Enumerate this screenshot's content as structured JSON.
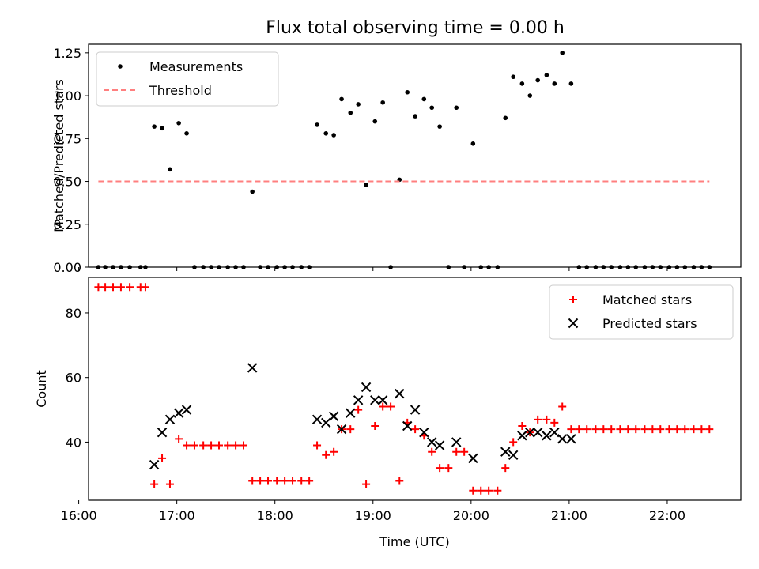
{
  "figure": {
    "title": "Flux total observing time = 0.00 h"
  },
  "chart_data": [
    {
      "type": "scatter",
      "title": "Flux total observing time = 0.00 h",
      "xlabel": "",
      "ylabel": "Matched/Predicted stars",
      "xlim": [
        16.1,
        22.75
      ],
      "ylim": [
        0.0,
        1.3
      ],
      "yticks": [
        0.0,
        0.25,
        0.5,
        0.75,
        1.0,
        1.25
      ],
      "ytick_labels": [
        "0.00",
        "0.25",
        "0.50",
        "0.75",
        "1.00",
        "1.25"
      ],
      "xticks": [
        16,
        17,
        18,
        19,
        20,
        21,
        22
      ],
      "show_xtick_labels": false,
      "legend": {
        "placement": "upper left",
        "entries": [
          "Measurements",
          "Threshold"
        ]
      },
      "series": [
        {
          "name": "Measurements",
          "color": "#000000",
          "marker": "dot",
          "x": [
            16.2,
            16.27,
            16.35,
            16.43,
            16.52,
            16.63,
            16.68,
            16.77,
            16.85,
            16.93,
            17.02,
            17.1,
            17.18,
            17.27,
            17.35,
            17.43,
            17.52,
            17.6,
            17.68,
            17.77,
            17.85,
            17.93,
            18.02,
            18.1,
            18.18,
            18.27,
            18.35,
            18.43,
            18.52,
            18.6,
            18.68,
            18.77,
            18.85,
            18.93,
            19.02,
            19.1,
            19.18,
            19.27,
            19.35,
            19.43,
            19.52,
            19.6,
            19.68,
            19.77,
            19.85,
            19.93,
            20.02,
            20.1,
            20.18,
            20.27,
            20.35,
            20.43,
            20.52,
            20.6,
            20.68,
            20.77,
            20.85,
            20.93,
            21.02,
            21.1,
            21.18,
            21.27,
            21.35,
            21.43,
            21.52,
            21.6,
            21.68,
            21.77,
            21.85,
            21.93,
            22.02,
            22.1,
            22.18,
            22.27,
            22.35,
            22.43
          ],
          "y": [
            0,
            0,
            0,
            0,
            0,
            0,
            0,
            0.82,
            0.81,
            0.57,
            0.84,
            0.78,
            0,
            0,
            0,
            0,
            0,
            0,
            0,
            0.44,
            0,
            0,
            0,
            0,
            0,
            0,
            0,
            0.83,
            0.78,
            0.77,
            0.98,
            0.9,
            0.95,
            0.48,
            0.85,
            0.96,
            0,
            0.51,
            1.02,
            0.88,
            0.98,
            0.93,
            0.82,
            0,
            0.93,
            0,
            0.72,
            0,
            0,
            0,
            0.87,
            1.11,
            1.07,
            1.0,
            1.09,
            1.12,
            1.07,
            1.25,
            1.07,
            0,
            0,
            0,
            0,
            0,
            0,
            0,
            0,
            0,
            0,
            0,
            0,
            0,
            0,
            0,
            0,
            0
          ]
        },
        {
          "name": "Threshold",
          "color": "#ff7f7f",
          "style": "dashed",
          "x": [
            16.2,
            22.43
          ],
          "y": [
            0.5,
            0.5
          ]
        }
      ]
    },
    {
      "type": "scatter",
      "title": "",
      "xlabel": "Time (UTC)",
      "ylabel": "Count",
      "xlim": [
        16.1,
        22.75
      ],
      "ylim": [
        22,
        91
      ],
      "yticks": [
        40,
        60,
        80
      ],
      "ytick_labels": [
        "40",
        "60",
        "80"
      ],
      "xticks": [
        16,
        17,
        18,
        19,
        20,
        21,
        22
      ],
      "xtick_labels": [
        "16:00",
        "17:00",
        "18:00",
        "19:00",
        "20:00",
        "21:00",
        "22:00"
      ],
      "legend": {
        "placement": "upper right",
        "entries": [
          "Matched stars",
          "Predicted stars"
        ]
      },
      "series": [
        {
          "name": "Matched stars",
          "color": "#ff0000",
          "marker": "plus",
          "x": [
            16.2,
            16.27,
            16.35,
            16.43,
            16.52,
            16.63,
            16.68,
            16.77,
            16.85,
            16.93,
            17.02,
            17.1,
            17.18,
            17.27,
            17.35,
            17.43,
            17.52,
            17.6,
            17.68,
            17.77,
            17.85,
            17.93,
            18.02,
            18.1,
            18.18,
            18.27,
            18.35,
            18.43,
            18.52,
            18.6,
            18.68,
            18.77,
            18.85,
            18.93,
            19.02,
            19.1,
            19.18,
            19.27,
            19.35,
            19.43,
            19.52,
            19.6,
            19.68,
            19.77,
            19.85,
            19.93,
            20.02,
            20.1,
            20.18,
            20.27,
            20.35,
            20.43,
            20.52,
            20.6,
            20.68,
            20.77,
            20.85,
            20.93,
            21.02,
            21.1,
            21.18,
            21.27,
            21.35,
            21.43,
            21.52,
            21.6,
            21.68,
            21.77,
            21.85,
            21.93,
            22.02,
            22.1,
            22.18,
            22.27,
            22.35,
            22.43
          ],
          "y": [
            88,
            88,
            88,
            88,
            88,
            88,
            88,
            27,
            35,
            27,
            41,
            39,
            39,
            39,
            39,
            39,
            39,
            39,
            39,
            28,
            28,
            28,
            28,
            28,
            28,
            28,
            28,
            39,
            36,
            37,
            44,
            44,
            50,
            27,
            45,
            51,
            51,
            28,
            46,
            44,
            42,
            37,
            32,
            32,
            37,
            37,
            25,
            25,
            25,
            25,
            32,
            40,
            45,
            43,
            47,
            47,
            46,
            51,
            44,
            44,
            44,
            44,
            44,
            44,
            44,
            44,
            44,
            44,
            44,
            44,
            44,
            44,
            44,
            44,
            44,
            44
          ]
        },
        {
          "name": "Predicted stars",
          "color": "#000000",
          "marker": "x",
          "x": [
            16.77,
            16.85,
            16.93,
            17.02,
            17.1,
            17.77,
            18.43,
            18.52,
            18.6,
            18.68,
            18.77,
            18.85,
            18.93,
            19.02,
            19.1,
            19.27,
            19.35,
            19.43,
            19.52,
            19.6,
            19.68,
            19.85,
            20.02,
            20.35,
            20.43,
            20.52,
            20.6,
            20.68,
            20.77,
            20.85,
            20.93,
            21.02
          ],
          "y": [
            33,
            43,
            47,
            49,
            50,
            63,
            47,
            46,
            48,
            44,
            49,
            53,
            57,
            53,
            53,
            55,
            45,
            50,
            43,
            40,
            39,
            40,
            35,
            37,
            36,
            42,
            43,
            43,
            42,
            43,
            41,
            41
          ]
        }
      ]
    }
  ]
}
